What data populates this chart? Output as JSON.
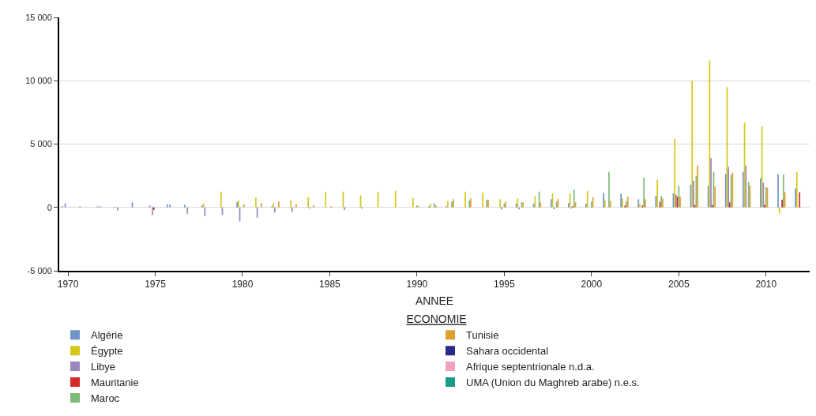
{
  "chart_data": {
    "type": "bar",
    "xlabel": "ANNEE",
    "legend_title": "ECONOMIE",
    "categories": [
      "1970",
      null,
      null,
      null,
      null,
      "1975",
      null,
      null,
      null,
      null,
      "1980",
      null,
      null,
      null,
      null,
      "1985",
      null,
      null,
      null,
      null,
      "1990",
      null,
      null,
      null,
      null,
      "1995",
      null,
      null,
      null,
      null,
      "2000",
      null,
      null,
      null,
      null,
      "2005",
      null,
      null,
      null,
      null,
      "2010",
      null,
      null
    ],
    "ylim": [
      -5000,
      15000
    ],
    "yticks": [
      {
        "value": -5000,
        "label": "-5 000"
      },
      0,
      {
        "value": 5000,
        "label": "5 000"
      },
      {
        "value": 10000,
        "label": "10 000"
      },
      {
        "value": 15000,
        "label": "15 000"
      }
    ],
    "grid": "y",
    "legend": "bottom",
    "series": [
      {
        "name": "Algérie",
        "color": "#6f95c8",
        "values": [
          100,
          80,
          80,
          50,
          400,
          150,
          250,
          200,
          150,
          0,
          400,
          0,
          100,
          0,
          0,
          0,
          0,
          0,
          0,
          0,
          0,
          100,
          100,
          0,
          0,
          0,
          300,
          300,
          650,
          350,
          300,
          1150,
          1100,
          650,
          900,
          1100,
          1800,
          1700,
          2650,
          2800,
          2300,
          2600,
          1500
        ]
      },
      {
        "name": "Égypte",
        "color": "#d4c81c",
        "values": [
          0,
          0,
          0,
          0,
          0,
          0,
          0,
          0,
          350,
          1250,
          550,
          780,
          350,
          550,
          800,
          1200,
          1250,
          950,
          1250,
          1300,
          750,
          300,
          500,
          1250,
          1150,
          650,
          700,
          900,
          1100,
          1100,
          1300,
          550,
          700,
          250,
          2200,
          5400,
          10000,
          11600,
          9500,
          6700,
          6400,
          -500,
          2800
        ]
      },
      {
        "name": "Libye",
        "color": "#9b87bd",
        "values": [
          330,
          0,
          100,
          -250,
          0,
          -600,
          250,
          -500,
          -700,
          -600,
          -1100,
          -800,
          -400,
          -350,
          -100,
          0,
          -200,
          -100,
          0,
          0,
          0,
          0,
          0,
          0,
          0,
          -150,
          -150,
          0,
          -150,
          -100,
          0,
          null,
          0,
          0,
          0,
          1000,
          2100,
          3900,
          3200,
          3300,
          1950,
          0,
          null
        ]
      },
      {
        "name": "Mauritanie",
        "color": "#d42a2a",
        "values": [
          0,
          0,
          0,
          0,
          0,
          -200,
          0,
          0,
          0,
          0,
          0,
          0,
          0,
          0,
          0,
          0,
          0,
          0,
          0,
          0,
          0,
          0,
          0,
          0,
          0,
          0,
          0,
          0,
          0,
          100,
          0,
          0,
          150,
          150,
          450,
          850,
          200,
          200,
          400,
          null,
          200,
          600,
          1200
        ]
      },
      {
        "name": "Maroc",
        "color": "#7fba7a",
        "values": [
          0,
          0,
          0,
          0,
          null,
          0,
          0,
          0,
          0,
          0,
          0,
          0,
          0,
          0,
          0,
          0,
          0,
          0,
          0,
          0,
          150,
          350,
          450,
          550,
          600,
          300,
          400,
          1250,
          450,
          1400,
          450,
          2800,
          500,
          2350,
          900,
          1700,
          2500,
          2800,
          2550,
          2000,
          1600,
          2600,
          null
        ]
      },
      {
        "name": "Tunisie",
        "color": "#e0a030",
        "values": [
          0,
          0,
          0,
          0,
          0,
          0,
          0,
          0,
          0,
          0,
          250,
          350,
          450,
          250,
          150,
          100,
          0,
          0,
          0,
          0,
          100,
          150,
          650,
          700,
          600,
          450,
          400,
          400,
          650,
          400,
          800,
          500,
          850,
          650,
          700,
          850,
          3300,
          1650,
          2750,
          1700,
          1550,
          1200,
          null
        ]
      },
      {
        "name": "Sahara occidental",
        "color": "#2a2a8a",
        "values": [
          0,
          0,
          0,
          0,
          0,
          0,
          0,
          0,
          0,
          0,
          0,
          0,
          0,
          0,
          0,
          0,
          0,
          0,
          0,
          0,
          0,
          0,
          0,
          0,
          0,
          0,
          0,
          0,
          0,
          0,
          0,
          0,
          0,
          0,
          0,
          0,
          0,
          0,
          0,
          0,
          0,
          0,
          null
        ]
      },
      {
        "name": "Afrique septentrionale n.d.a.",
        "color": "#f0a0c0",
        "values": [
          0,
          0,
          0,
          0,
          0,
          0,
          0,
          0,
          0,
          0,
          0,
          0,
          0,
          0,
          0,
          0,
          0,
          0,
          0,
          0,
          0,
          0,
          0,
          0,
          0,
          0,
          0,
          0,
          0,
          0,
          0,
          0,
          0,
          0,
          0,
          0,
          0,
          0,
          0,
          0,
          0,
          0,
          null
        ]
      },
      {
        "name": "UMA (Union du Maghreb arabe) n.e.s.",
        "color": "#1a9a8a",
        "values": [
          0,
          0,
          0,
          0,
          0,
          0,
          0,
          0,
          0,
          0,
          0,
          0,
          0,
          0,
          0,
          0,
          0,
          0,
          0,
          0,
          0,
          0,
          0,
          0,
          0,
          0,
          0,
          0,
          0,
          0,
          0,
          0,
          0,
          0,
          0,
          0,
          0,
          0,
          0,
          0,
          0,
          0,
          null
        ]
      }
    ]
  }
}
